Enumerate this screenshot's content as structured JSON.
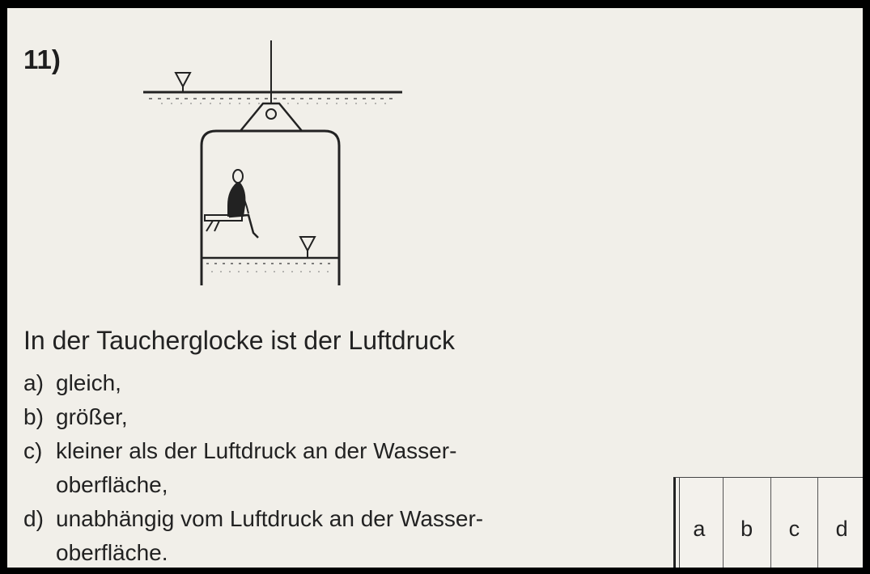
{
  "question": {
    "number": "11)",
    "stem": "In der Taucherglocke ist der Luftdruck",
    "options": [
      {
        "letter": "a)",
        "lines": [
          "gleich,"
        ]
      },
      {
        "letter": "b)",
        "lines": [
          "größer,"
        ]
      },
      {
        "letter": "c)",
        "lines": [
          "kleiner als der Luftdruck an der Wasser-",
          "oberfläche,"
        ]
      },
      {
        "letter": "d)",
        "lines": [
          "unabhängig vom Luftdruck an der Wasser-",
          "oberfläche."
        ]
      }
    ]
  },
  "answer_box": {
    "choices": [
      "a",
      "b",
      "c",
      "d"
    ]
  },
  "figure": {
    "icons": [
      "water-level-marker-icon",
      "pulley-icon",
      "diving-bell",
      "seated-person-icon"
    ]
  }
}
